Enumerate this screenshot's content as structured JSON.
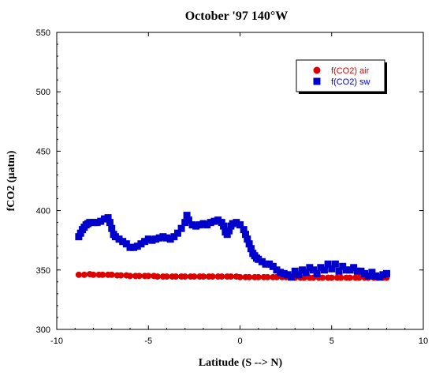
{
  "chart_data": {
    "type": "scatter",
    "title": "October '97 140°W",
    "xlabel": "Latitude (S --> N)",
    "ylabel": "fCO2 (µatm)",
    "xlim": [
      -10,
      10
    ],
    "ylim": [
      300,
      550
    ],
    "xticks": [
      -10,
      -5,
      0,
      5,
      10
    ],
    "yticks": [
      300,
      350,
      400,
      450,
      500,
      550
    ],
    "grid": false,
    "legend_position": "top-right",
    "series": [
      {
        "name": "f(CO2) air",
        "marker": "circle",
        "color": "#dd0000",
        "points": [
          [
            -8.8,
            346
          ],
          [
            -8.5,
            346
          ],
          [
            -8.2,
            346.5
          ],
          [
            -8.0,
            346
          ],
          [
            -7.7,
            346
          ],
          [
            -7.5,
            346
          ],
          [
            -7.2,
            346
          ],
          [
            -7.0,
            346
          ],
          [
            -6.7,
            345.5
          ],
          [
            -6.5,
            345.5
          ],
          [
            -6.2,
            345.5
          ],
          [
            -6.0,
            345
          ],
          [
            -5.7,
            345
          ],
          [
            -5.5,
            345
          ],
          [
            -5.2,
            345
          ],
          [
            -5.0,
            345
          ],
          [
            -4.7,
            345
          ],
          [
            -4.5,
            344.5
          ],
          [
            -4.2,
            344.5
          ],
          [
            -4.0,
            344.5
          ],
          [
            -3.7,
            344.5
          ],
          [
            -3.5,
            344.5
          ],
          [
            -3.2,
            344.5
          ],
          [
            -3.0,
            344.5
          ],
          [
            -2.7,
            344.5
          ],
          [
            -2.5,
            344.5
          ],
          [
            -2.2,
            344.5
          ],
          [
            -2.0,
            344.5
          ],
          [
            -1.7,
            344.5
          ],
          [
            -1.5,
            344.5
          ],
          [
            -1.2,
            344.5
          ],
          [
            -1.0,
            344.5
          ],
          [
            -0.7,
            344.5
          ],
          [
            -0.5,
            344.5
          ],
          [
            -0.2,
            344.5
          ],
          [
            0.0,
            344
          ],
          [
            0.3,
            344
          ],
          [
            0.5,
            344
          ],
          [
            0.8,
            344
          ],
          [
            1.0,
            344
          ],
          [
            1.3,
            344
          ],
          [
            1.5,
            344
          ],
          [
            1.8,
            344
          ],
          [
            2.0,
            344
          ],
          [
            2.3,
            344
          ],
          [
            2.5,
            344
          ],
          [
            2.8,
            344
          ],
          [
            3.0,
            343.5
          ],
          [
            3.3,
            343.5
          ],
          [
            3.5,
            343.5
          ],
          [
            3.8,
            343.5
          ],
          [
            4.0,
            343.5
          ],
          [
            4.3,
            343.5
          ],
          [
            4.5,
            343.5
          ],
          [
            4.8,
            343.5
          ],
          [
            5.0,
            343.5
          ],
          [
            5.3,
            343.5
          ],
          [
            5.5,
            343.5
          ],
          [
            5.8,
            343.5
          ],
          [
            6.0,
            343.5
          ],
          [
            6.3,
            343.5
          ],
          [
            6.5,
            343.5
          ],
          [
            6.8,
            343.5
          ],
          [
            7.0,
            343.5
          ],
          [
            7.3,
            343.5
          ],
          [
            7.5,
            343.5
          ],
          [
            7.8,
            343.5
          ],
          [
            8.0,
            343.5
          ]
        ]
      },
      {
        "name": "f(CO2) sw",
        "marker": "square",
        "color": "#0000cc",
        "points": [
          [
            -8.8,
            378
          ],
          [
            -8.7,
            381
          ],
          [
            -8.6,
            384
          ],
          [
            -8.5,
            386
          ],
          [
            -8.4,
            388
          ],
          [
            -8.3,
            389
          ],
          [
            -8.2,
            390
          ],
          [
            -8.0,
            390
          ],
          [
            -7.8,
            390
          ],
          [
            -7.6,
            391
          ],
          [
            -7.4,
            393
          ],
          [
            -7.2,
            394
          ],
          [
            -7.1,
            390
          ],
          [
            -7.0,
            385
          ],
          [
            -6.9,
            380
          ],
          [
            -6.8,
            378
          ],
          [
            -6.6,
            376
          ],
          [
            -6.4,
            374
          ],
          [
            -6.2,
            372
          ],
          [
            -6.0,
            369
          ],
          [
            -5.8,
            369
          ],
          [
            -5.6,
            370
          ],
          [
            -5.4,
            372
          ],
          [
            -5.2,
            374
          ],
          [
            -5.0,
            376
          ],
          [
            -4.8,
            375
          ],
          [
            -4.6,
            376
          ],
          [
            -4.4,
            377
          ],
          [
            -4.2,
            378
          ],
          [
            -4.0,
            377
          ],
          [
            -3.8,
            376
          ],
          [
            -3.6,
            378
          ],
          [
            -3.4,
            381
          ],
          [
            -3.2,
            385
          ],
          [
            -3.0,
            390
          ],
          [
            -2.9,
            396
          ],
          [
            -2.8,
            392
          ],
          [
            -2.6,
            388
          ],
          [
            -2.4,
            387
          ],
          [
            -2.2,
            388
          ],
          [
            -2.0,
            389
          ],
          [
            -1.8,
            388
          ],
          [
            -1.6,
            390
          ],
          [
            -1.4,
            391
          ],
          [
            -1.2,
            392
          ],
          [
            -1.0,
            390
          ],
          [
            -0.9,
            387
          ],
          [
            -0.8,
            382
          ],
          [
            -0.7,
            380
          ],
          [
            -0.6,
            383
          ],
          [
            -0.5,
            387
          ],
          [
            -0.4,
            389
          ],
          [
            -0.2,
            390
          ],
          [
            0.0,
            388
          ],
          [
            0.2,
            384
          ],
          [
            0.3,
            380
          ],
          [
            0.4,
            376
          ],
          [
            0.5,
            372
          ],
          [
            0.6,
            368
          ],
          [
            0.7,
            364
          ],
          [
            0.8,
            362
          ],
          [
            0.9,
            360
          ],
          [
            1.0,
            359
          ],
          [
            1.2,
            357
          ],
          [
            1.4,
            355
          ],
          [
            1.6,
            355
          ],
          [
            1.8,
            353
          ],
          [
            2.0,
            350
          ],
          [
            2.2,
            348
          ],
          [
            2.4,
            347
          ],
          [
            2.6,
            346
          ],
          [
            2.8,
            344
          ],
          [
            3.0,
            349
          ],
          [
            3.2,
            346
          ],
          [
            3.4,
            350
          ],
          [
            3.6,
            348
          ],
          [
            3.8,
            352
          ],
          [
            4.0,
            350
          ],
          [
            4.2,
            347
          ],
          [
            4.4,
            352
          ],
          [
            4.6,
            350
          ],
          [
            4.8,
            355
          ],
          [
            5.0,
            351
          ],
          [
            5.2,
            355
          ],
          [
            5.4,
            349
          ],
          [
            5.6,
            353
          ],
          [
            5.8,
            350
          ],
          [
            6.0,
            350
          ],
          [
            6.2,
            352
          ],
          [
            6.4,
            349
          ],
          [
            6.6,
            349
          ],
          [
            6.8,
            347
          ],
          [
            7.0,
            345
          ],
          [
            7.2,
            348
          ],
          [
            7.4,
            345
          ],
          [
            7.6,
            344
          ],
          [
            7.8,
            346
          ],
          [
            8.0,
            347
          ]
        ]
      }
    ]
  }
}
